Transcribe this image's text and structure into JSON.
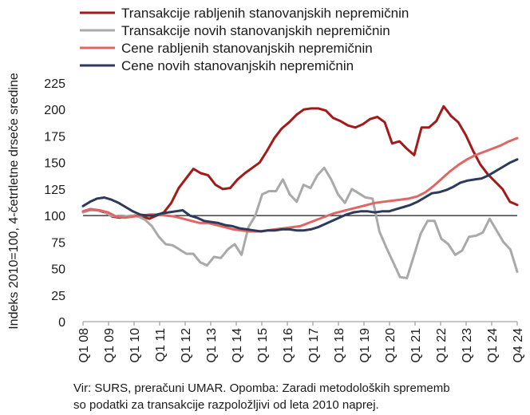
{
  "chart_data": {
    "type": "line",
    "ylabel": "Indeks 2010=100, 4-četrtletne drseče sredine",
    "ylim": [
      0,
      225
    ],
    "yticks": [
      0,
      25,
      50,
      75,
      100,
      125,
      150,
      175,
      200,
      225
    ],
    "xticks": [
      "Q1 08",
      "Q1 09",
      "Q1 10",
      "Q1 11",
      "Q1 12",
      "Q1 13",
      "Q1 14",
      "Q1 15",
      "Q1 16",
      "Q1 17",
      "Q1 18",
      "Q1 19",
      "Q1 20",
      "Q1 21",
      "Q1 22",
      "Q1 23",
      "Q1 24",
      "Q4 24"
    ],
    "reference_line": 100,
    "grid": false,
    "legend_position": "top",
    "x_start": "Q1 08",
    "x_end": "Q4 24",
    "series": [
      {
        "name": "Transakcije rabljenih stanovanjskih nepremičnin",
        "color": "#a31a1a",
        "values": [
          104,
          106,
          105,
          103,
          99,
          98,
          99,
          100,
          99,
          97,
          100,
          103,
          112,
          126,
          135,
          144,
          140,
          138,
          129,
          125,
          126,
          134,
          140,
          145,
          150,
          161,
          173,
          182,
          188,
          195,
          200,
          201,
          201,
          199,
          192,
          189,
          185,
          183,
          186,
          191,
          193,
          188,
          168,
          170,
          163,
          157,
          183,
          183,
          189,
          203,
          194,
          188,
          176,
          161,
          148,
          139,
          132,
          125,
          113,
          110
        ]
      },
      {
        "name": "Transakcije novih stanovanjskih nepremičnin",
        "color": "#a9a9a9",
        "values": [
          103,
          105,
          105,
          104,
          100,
          99,
          99,
          100,
          99,
          96,
          90,
          80,
          73,
          72,
          68,
          64,
          64,
          56,
          53,
          61,
          60,
          68,
          73,
          63,
          89,
          100,
          120,
          123,
          123,
          134,
          120,
          113,
          129,
          126,
          138,
          145,
          134,
          120,
          112,
          125,
          121,
          117,
          116,
          85,
          70,
          56,
          42,
          41,
          62,
          83,
          95,
          95,
          78,
          73,
          63,
          67,
          80,
          81,
          84,
          97,
          86,
          75,
          68,
          47
        ]
      },
      {
        "name": "Cene rabljenih stanovanjskih nepremičnin",
        "color": "#e06666",
        "values": [
          104,
          106,
          105,
          103,
          99,
          98,
          99,
          100,
          101,
          101,
          100,
          99,
          97,
          95,
          93,
          93,
          91,
          89,
          87,
          86,
          85,
          85,
          86,
          87,
          88,
          89,
          90,
          93,
          96,
          99,
          102,
          104,
          106,
          108,
          110,
          112,
          113,
          114,
          115,
          116,
          118,
          122,
          128,
          135,
          142,
          148,
          153,
          157,
          160,
          163,
          166,
          170,
          173
        ]
      },
      {
        "name": "Cene novih stanovanjskih nepremičnin",
        "color": "#2e3a59",
        "values": [
          109,
          113,
          116,
          117,
          115,
          112,
          108,
          104,
          101,
          100,
          100,
          102,
          103,
          104,
          105,
          100,
          98,
          95,
          94,
          93,
          91,
          90,
          88,
          87,
          86,
          85,
          86,
          86,
          87,
          87,
          86,
          86,
          87,
          89,
          92,
          95,
          98,
          101,
          103,
          104,
          104,
          103,
          104,
          104,
          106,
          108,
          110,
          113,
          117,
          121,
          122,
          124,
          127,
          131,
          133,
          134,
          135,
          138,
          142,
          146,
          150,
          153
        ]
      }
    ]
  },
  "note_line1": "Vir: SURS, preračuni UMAR. Opomba: Zaradi metodoloških sprememb",
  "note_line2": "so podatki za transakcije razpoložljivi od leta 2010 naprej."
}
